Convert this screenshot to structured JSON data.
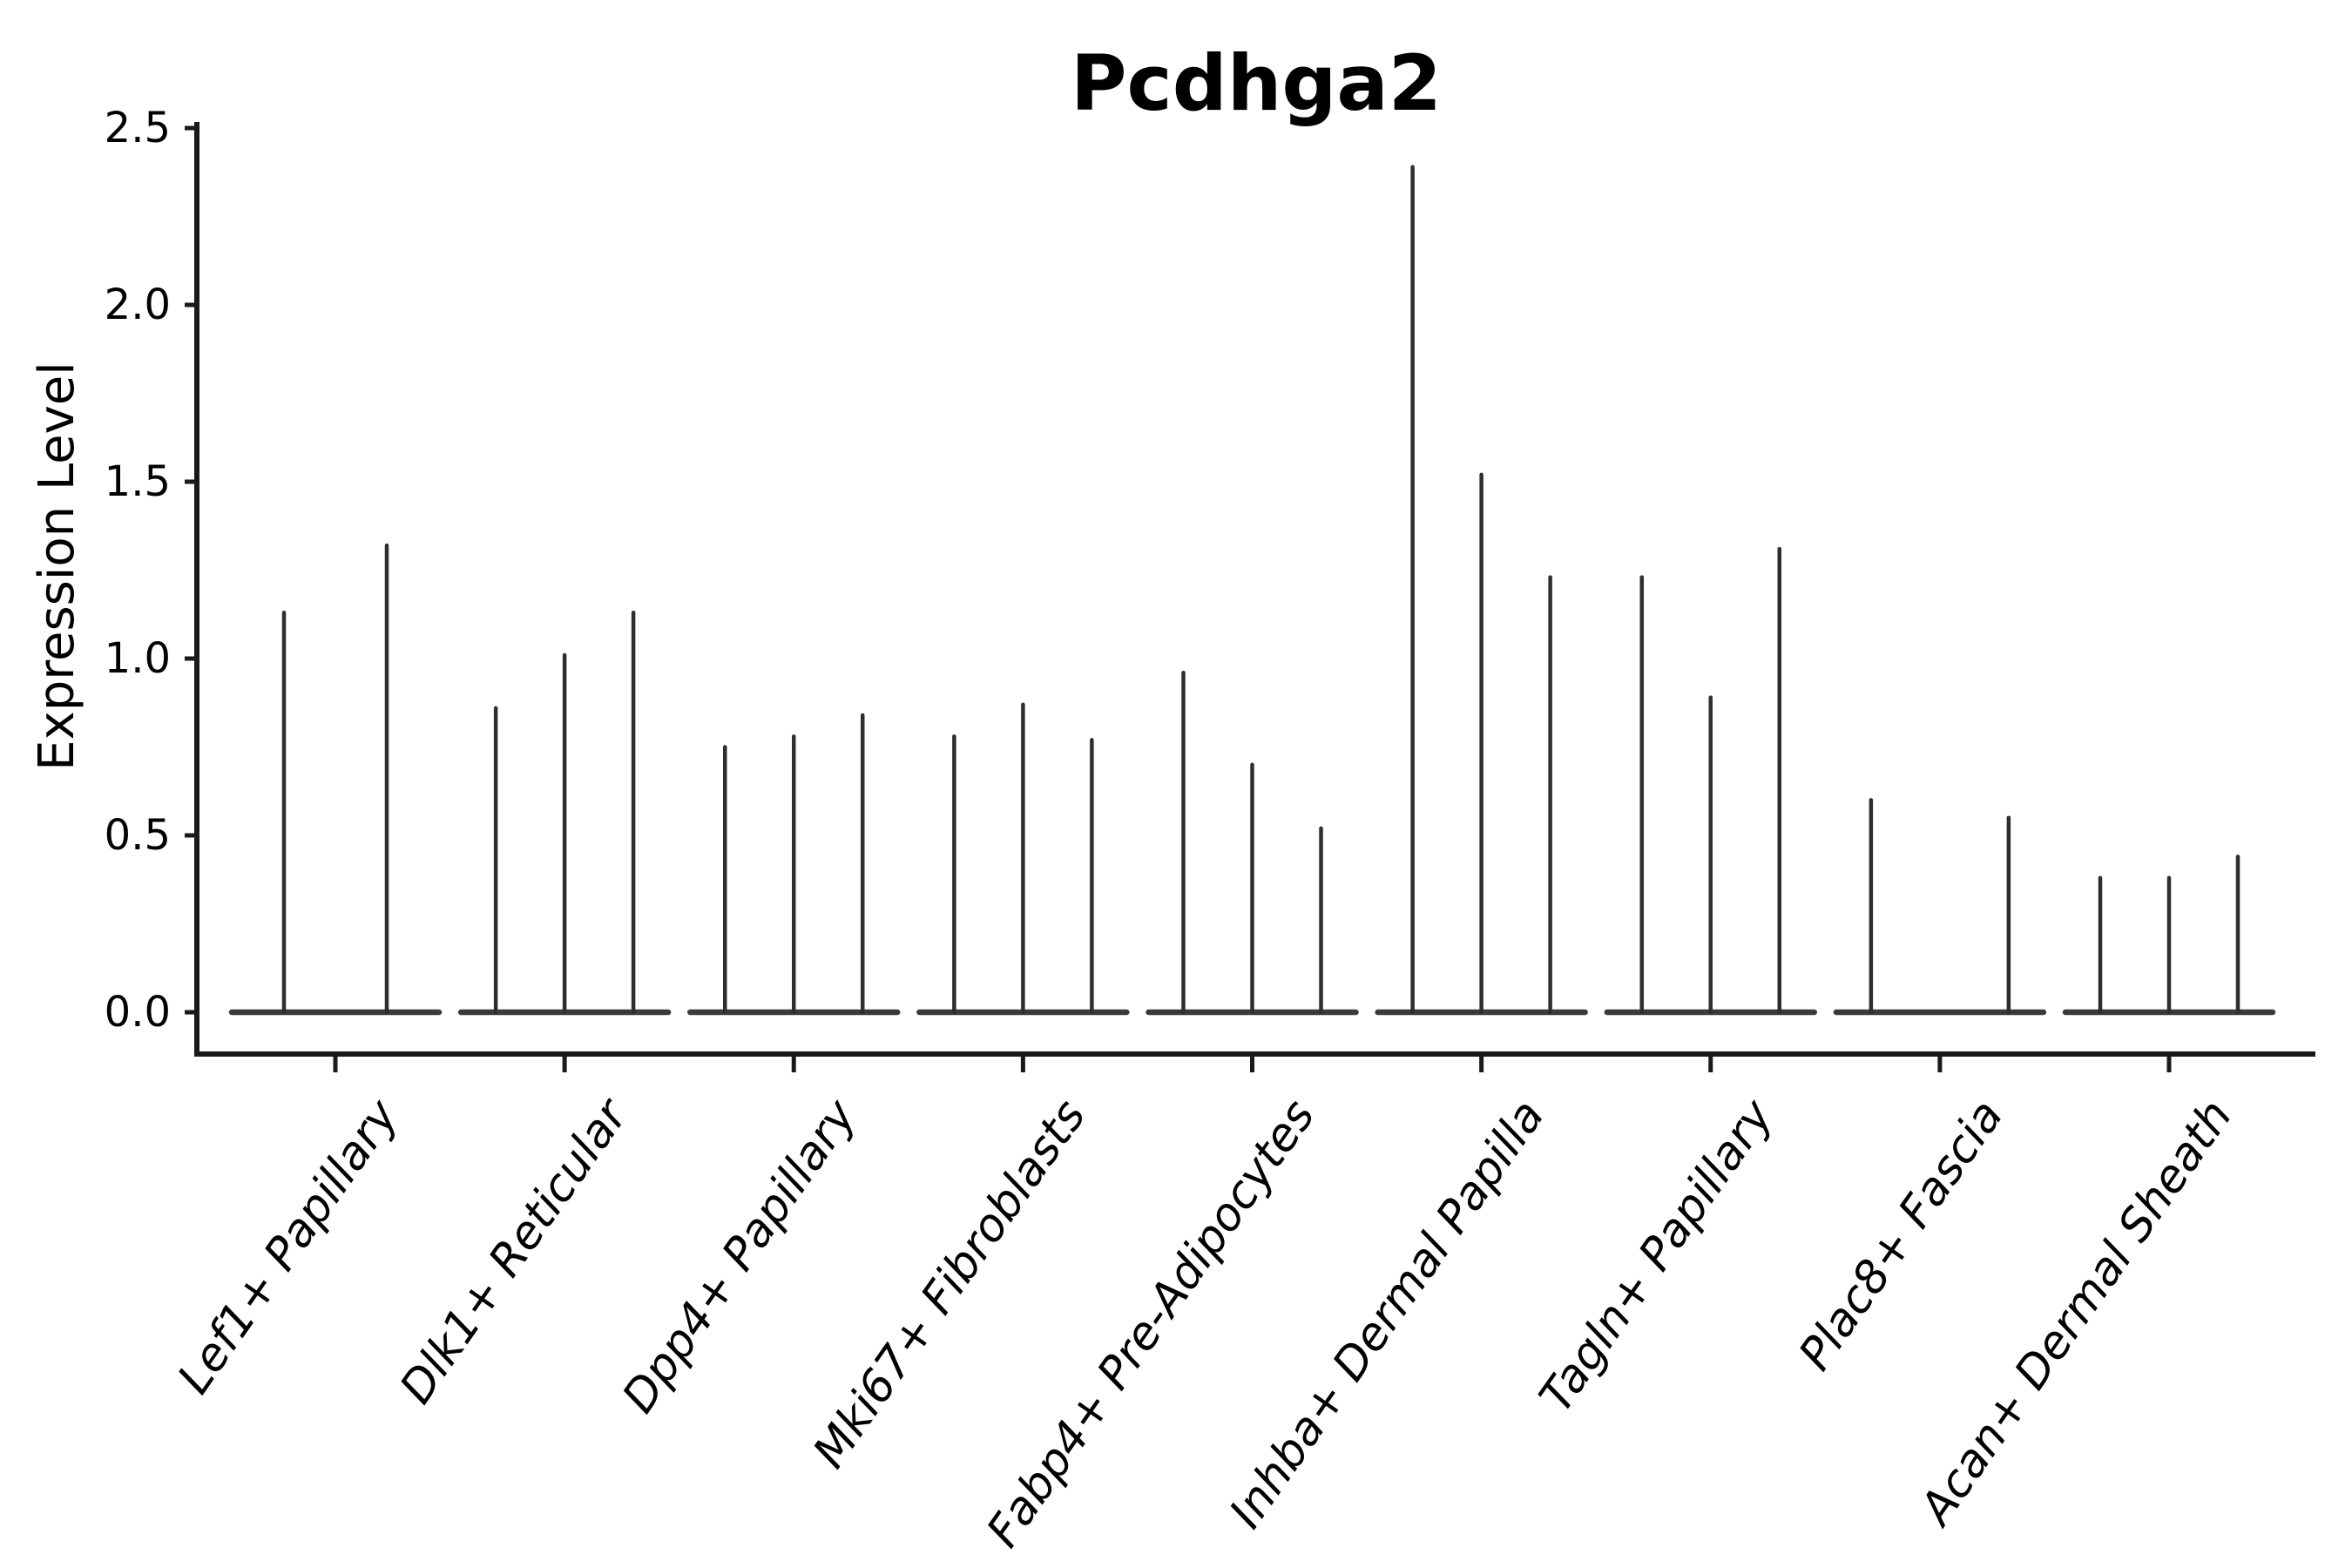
{
  "chart_data": {
    "type": "violin",
    "title": "Pcdhga2",
    "ylabel": "Expression Level",
    "xlabel": "",
    "ylim": [
      0,
      2.5
    ],
    "ytick_labels": [
      "0.0",
      "0.5",
      "1.0",
      "1.5",
      "2.0",
      "2.5"
    ],
    "ytick_values": [
      0,
      0.5,
      1.0,
      1.5,
      2.0,
      2.5
    ],
    "grid": false,
    "legend": "none",
    "categories": [
      "Lef1+ Papillary",
      "Dlk1+ Reticular",
      "Dpp4+ Papillary",
      "Mki67+ Fibroblasts",
      "Fabp4+ Pre-Adipocytes",
      "Inhba+ Dermal Papilla",
      "Tagln+ Papillary",
      "Plac8+ Fascia",
      "Acan+ Dermal Sheath"
    ],
    "groups": [
      {
        "category": "Lef1+ Papillary",
        "n_slots": 2,
        "spikes": [
          {
            "slot": 0,
            "peak": 1.13
          },
          {
            "slot": 1,
            "peak": 1.32
          }
        ]
      },
      {
        "category": "Dlk1+ Reticular",
        "n_slots": 3,
        "spikes": [
          {
            "slot": 0,
            "peak": 0.86
          },
          {
            "slot": 1,
            "peak": 1.01
          },
          {
            "slot": 2,
            "peak": 1.13
          }
        ]
      },
      {
        "category": "Dpp4+ Papillary",
        "n_slots": 3,
        "spikes": [
          {
            "slot": 0,
            "peak": 0.75
          },
          {
            "slot": 1,
            "peak": 0.78
          },
          {
            "slot": 2,
            "peak": 0.84
          }
        ]
      },
      {
        "category": "Mki67+ Fibroblasts",
        "n_slots": 3,
        "spikes": [
          {
            "slot": 0,
            "peak": 0.78
          },
          {
            "slot": 1,
            "peak": 0.87
          },
          {
            "slot": 2,
            "peak": 0.77
          }
        ]
      },
      {
        "category": "Fabp4+ Pre-Adipocytes",
        "n_slots": 3,
        "spikes": [
          {
            "slot": 0,
            "peak": 0.96
          },
          {
            "slot": 1,
            "peak": 0.7
          },
          {
            "slot": 2,
            "peak": 0.52
          }
        ]
      },
      {
        "category": "Inhba+ Dermal Papilla",
        "n_slots": 3,
        "spikes": [
          {
            "slot": 0,
            "peak": 2.39
          },
          {
            "slot": 1,
            "peak": 1.52
          },
          {
            "slot": 2,
            "peak": 1.23
          }
        ]
      },
      {
        "category": "Tagln+ Papillary",
        "n_slots": 3,
        "spikes": [
          {
            "slot": 0,
            "peak": 1.23
          },
          {
            "slot": 1,
            "peak": 0.89
          },
          {
            "slot": 2,
            "peak": 1.31
          }
        ]
      },
      {
        "category": "Plac8+ Fascia",
        "n_slots": 3,
        "spikes": [
          {
            "slot": 0,
            "peak": 0.6
          },
          {
            "slot": 2,
            "peak": 0.55
          }
        ]
      },
      {
        "category": "Acan+ Dermal Sheath",
        "n_slots": 3,
        "spikes": [
          {
            "slot": 0,
            "peak": 0.38
          },
          {
            "slot": 1,
            "peak": 0.38
          },
          {
            "slot": 2,
            "peak": 0.44
          }
        ]
      }
    ],
    "colors": {
      "spike": "#2e2e2e",
      "zero_line": "#3a3a3a",
      "axis": "#1a1a1a",
      "text": "#000000",
      "background": "#ffffff"
    }
  }
}
